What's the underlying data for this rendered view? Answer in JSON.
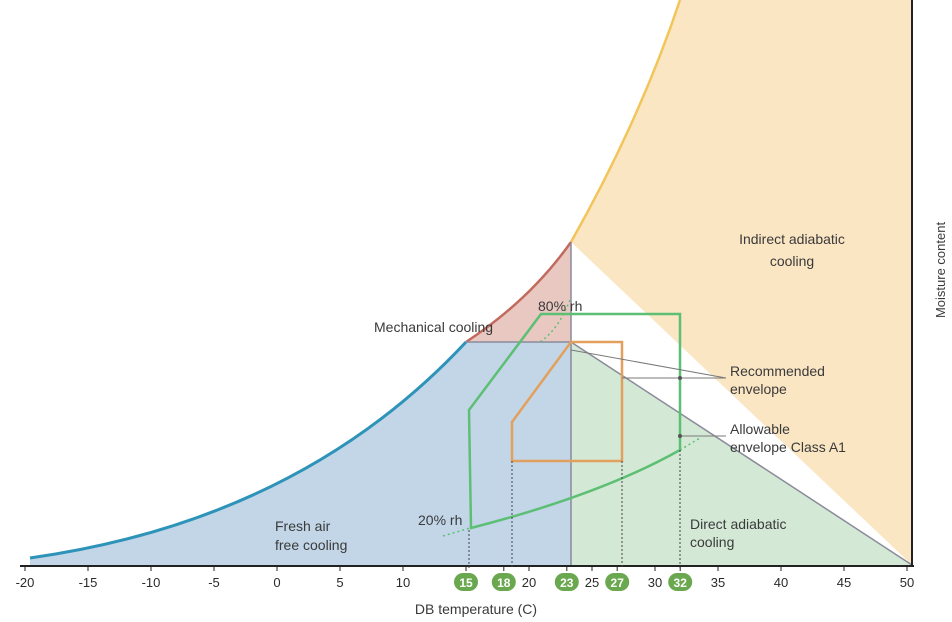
{
  "diagram": {
    "x_axis_label": "DB temperature (C)",
    "y_axis_label": "Moisture content",
    "x_ticks": [
      -20,
      -15,
      -10,
      -5,
      0,
      5,
      10,
      15,
      18,
      20,
      23,
      25,
      27,
      30,
      32,
      35,
      40,
      45,
      50
    ],
    "highlighted_ticks": [
      15,
      18,
      23,
      27,
      32
    ],
    "regions": {
      "mechanical": "Mechanical cooling",
      "indirect_line1": "Indirect adiabatic",
      "indirect_line2": "cooling",
      "fresh_line1": "Fresh air",
      "fresh_line2": "free cooling",
      "direct_line1": "Direct adiabatic",
      "direct_line2": "cooling"
    },
    "annotations": {
      "rh80": "80% rh",
      "rh20": "20% rh",
      "recommended_line1": "Recommended",
      "recommended_line2": "envelope",
      "allowable_line1": "Allowable",
      "allowable_line2": "envelope Class A1"
    },
    "colors": {
      "fresh_air": "#c2d6e8",
      "mechanical": "#e8c8c0",
      "indirect": "#fbe6c4",
      "direct": "#d3e9d6",
      "saturation_blue": "#2e93b8",
      "saturation_red": "#c26a5e",
      "saturation_yellow": "#f2c55a",
      "allowable": "#5cbf73",
      "recommended": "#e2a05c",
      "tick_badge": "#6aa84f"
    }
  }
}
